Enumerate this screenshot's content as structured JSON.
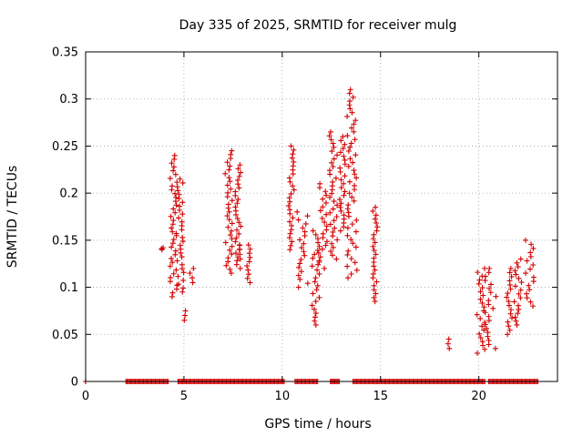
{
  "chart_data": {
    "type": "scatter",
    "title": "Day 335 of 2025, SRMTID for receiver mulg",
    "xlabel": "GPS time / hours",
    "ylabel": "SRMTID / TECUs",
    "xlim": [
      0,
      24
    ],
    "ylim": [
      0,
      0.35
    ],
    "x_ticks": [
      0,
      5,
      10,
      15,
      20
    ],
    "x_tick_labels": [
      "0",
      "5",
      "10",
      "15",
      "20"
    ],
    "y_ticks": [
      0,
      0.05,
      0.1,
      0.15,
      0.2,
      0.25,
      0.3,
      0.35
    ],
    "y_tick_labels": [
      "0",
      "0.05",
      "0.1",
      "0.15",
      "0.2",
      "0.25",
      "0.3",
      "0.35"
    ],
    "grid": true,
    "marker": "+",
    "color": "#d40000",
    "zero_series_x_ranges": [
      [
        0.0,
        0.0
      ],
      [
        2.05,
        4.2
      ],
      [
        4.7,
        10.1
      ],
      [
        10.65,
        11.8
      ],
      [
        12.45,
        12.9
      ],
      [
        13.6,
        20.3
      ],
      [
        20.5,
        23.0
      ]
    ],
    "clusters": [
      {
        "x": [
          3.85,
          4.05
        ],
        "y": [
          0.14,
          0.142
        ]
      },
      {
        "x": [
          4.3,
          4.65
        ],
        "y": [
          0.09,
          0.24
        ]
      },
      {
        "x": [
          4.6,
          5.0
        ],
        "y": [
          0.095,
          0.215
        ]
      },
      {
        "x": [
          5.0,
          5.25
        ],
        "y": [
          0.065,
          0.075
        ]
      },
      {
        "x": [
          5.3,
          5.5
        ],
        "y": [
          0.105,
          0.12
        ]
      },
      {
        "x": [
          7.1,
          7.5
        ],
        "y": [
          0.115,
          0.245
        ]
      },
      {
        "x": [
          7.6,
          7.9
        ],
        "y": [
          0.12,
          0.23
        ]
      },
      {
        "x": [
          7.8,
          8.0
        ],
        "y": [
          0.13,
          0.145
        ]
      },
      {
        "x": [
          8.2,
          8.4
        ],
        "y": [
          0.105,
          0.145
        ]
      },
      {
        "x": [
          10.3,
          10.6
        ],
        "y": [
          0.14,
          0.25
        ]
      },
      {
        "x": [
          10.7,
          11.3
        ],
        "y": [
          0.1,
          0.18
        ]
      },
      {
        "x": [
          11.5,
          11.9
        ],
        "y": [
          0.06,
          0.16
        ]
      },
      {
        "x": [
          11.8,
          12.3
        ],
        "y": [
          0.12,
          0.21
        ]
      },
      {
        "x": [
          12.4,
          12.8
        ],
        "y": [
          0.13,
          0.265
        ]
      },
      {
        "x": [
          12.9,
          13.2
        ],
        "y": [
          0.16,
          0.26
        ]
      },
      {
        "x": [
          13.3,
          13.8
        ],
        "y": [
          0.11,
          0.31
        ]
      },
      {
        "x": [
          14.6,
          14.85
        ],
        "y": [
          0.085,
          0.185
        ]
      },
      {
        "x": [
          18.4,
          18.6
        ],
        "y": [
          0.035,
          0.045
        ]
      },
      {
        "x": [
          19.9,
          20.3
        ],
        "y": [
          0.03,
          0.12
        ]
      },
      {
        "x": [
          20.3,
          20.9
        ],
        "y": [
          0.035,
          0.12
        ]
      },
      {
        "x": [
          21.4,
          21.7
        ],
        "y": [
          0.05,
          0.12
        ]
      },
      {
        "x": [
          21.8,
          22.2
        ],
        "y": [
          0.06,
          0.13
        ]
      },
      {
        "x": [
          22.3,
          22.8
        ],
        "y": [
          0.08,
          0.15
        ]
      }
    ]
  }
}
